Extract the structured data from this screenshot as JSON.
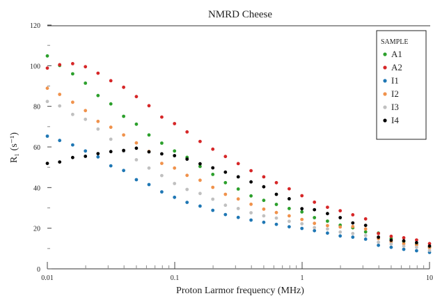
{
  "chart_data": {
    "type": "scatter",
    "title": "NMRD Cheese",
    "xlabel": "Proton Larmor frequency (MHz)",
    "ylabel": "R₁ (s⁻¹)",
    "xscale": "log",
    "xlim": [
      0.01,
      10
    ],
    "ylim": [
      0,
      120
    ],
    "x_ticks": [
      "0.01",
      "0.1",
      "1",
      "10"
    ],
    "y_ticks": [
      "0",
      "20",
      "40",
      "60",
      "80",
      "100",
      "120"
    ],
    "legend": {
      "title": "SAMPLE",
      "placement": "top-right"
    },
    "grid": false,
    "x": [
      0.01,
      0.0125,
      0.0158,
      0.0199,
      0.025,
      0.0315,
      0.0397,
      0.05,
      0.0628,
      0.0791,
      0.0996,
      0.125,
      0.158,
      0.199,
      0.25,
      0.315,
      0.397,
      0.5,
      0.628,
      0.791,
      0.996,
      1.25,
      1.58,
      1.99,
      2.5,
      3.15,
      3.97,
      5.0,
      6.28,
      7.91,
      10.0
    ],
    "series": [
      {
        "name": "A1",
        "color": "#2ca02c",
        "values": [
          104.8,
          100.1,
          96.0,
          91.4,
          85.3,
          81.2,
          75.1,
          71.2,
          65.9,
          61.9,
          58.0,
          54.9,
          50.4,
          46.5,
          42.4,
          39.3,
          35.9,
          33.7,
          31.7,
          29.7,
          28.0,
          25.2,
          23.5,
          21.5,
          20.2,
          18.2,
          17.6,
          14.9,
          13.4,
          12.1,
          10.6
        ]
      },
      {
        "name": "A2",
        "color": "#d62728",
        "values": [
          98.8,
          100.5,
          101.0,
          99.5,
          96.3,
          92.6,
          89.4,
          84.8,
          80.3,
          74.7,
          71.5,
          67.4,
          62.7,
          58.9,
          55.3,
          51.8,
          48.3,
          45.3,
          42.4,
          39.4,
          36.0,
          32.8,
          30.3,
          28.6,
          26.6,
          24.6,
          17.4,
          16.0,
          15.3,
          14.2,
          12.4
        ]
      },
      {
        "name": "I1",
        "color": "#1f77b4",
        "values": [
          65.3,
          63.2,
          61.0,
          58.0,
          55.1,
          50.7,
          48.4,
          43.9,
          41.5,
          37.9,
          35.2,
          32.7,
          30.9,
          28.8,
          26.7,
          25.3,
          24.0,
          22.9,
          21.9,
          20.7,
          19.9,
          18.8,
          17.6,
          16.2,
          15.6,
          14.6,
          11.6,
          10.6,
          9.6,
          8.9,
          8.1
        ]
      },
      {
        "name": "I2",
        "color": "#f0924c",
        "values": [
          88.9,
          85.9,
          82.0,
          77.9,
          72.6,
          69.7,
          65.9,
          62.0,
          57.8,
          51.9,
          49.6,
          46.0,
          43.6,
          40.1,
          36.7,
          34.4,
          31.8,
          29.4,
          27.7,
          26.1,
          24.3,
          22.4,
          21.3,
          20.6,
          20.8,
          19.6,
          14.9,
          13.3,
          12.3,
          11.7,
          10.4
        ]
      },
      {
        "name": "I3",
        "color": "#c0c0c0",
        "values": [
          82.4,
          80.2,
          76.0,
          73.6,
          68.8,
          63.8,
          57.8,
          53.7,
          49.6,
          45.9,
          42.0,
          39.1,
          37.1,
          34.3,
          31.3,
          29.7,
          27.6,
          26.1,
          25.0,
          23.4,
          22.2,
          20.3,
          19.6,
          18.1,
          17.4,
          16.4,
          13.1,
          12.2,
          11.1,
          10.6,
          9.1
        ]
      },
      {
        "name": "I4",
        "color": "#000000",
        "values": [
          51.9,
          52.6,
          54.8,
          55.4,
          56.7,
          57.7,
          58.3,
          59.4,
          57.6,
          56.6,
          55.7,
          54.0,
          51.7,
          49.7,
          47.6,
          45.3,
          42.8,
          40.4,
          36.7,
          34.5,
          29.6,
          29.1,
          27.2,
          25.2,
          22.6,
          21.4,
          15.6,
          14.1,
          13.8,
          12.9,
          11.2
        ]
      }
    ]
  }
}
